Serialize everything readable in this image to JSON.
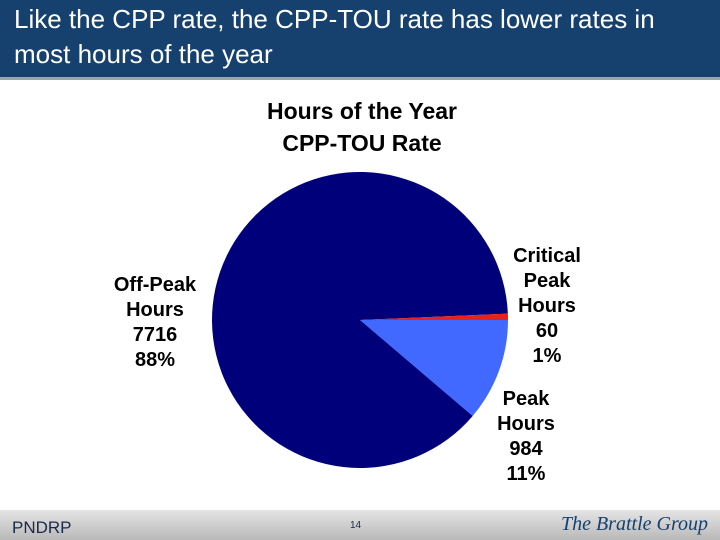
{
  "header": {
    "title": "Like the CPP rate, the CPP-TOU rate has lower rates in most hours of the year"
  },
  "chart_data": {
    "type": "pie",
    "title": "Hours of the Year",
    "subtitle": "CPP-TOU Rate",
    "categories": [
      "Peak Hours",
      "Off-Peak Hours",
      "Critical Peak Hours"
    ],
    "values": [
      984,
      7716,
      60
    ],
    "percent_labels": [
      "11%",
      "88%",
      "1%"
    ],
    "colors": [
      "#4169ff",
      "#00007a",
      "#e3231c"
    ]
  },
  "footer": {
    "left": "PNDRP",
    "page": "14",
    "brand": "The Brattle Group"
  }
}
